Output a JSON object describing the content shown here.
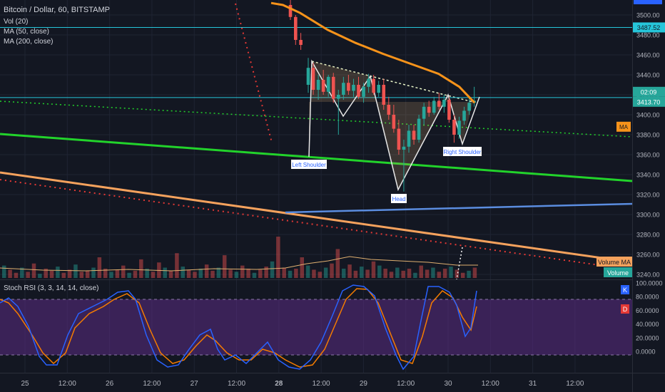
{
  "header": {
    "symbol": "Bitcoin / Dollar, 60, BITSTAMP",
    "indicators": [
      "Vol (20)",
      "MA (50, close)",
      "MA (200, close)"
    ]
  },
  "price_axis": {
    "ticks": [
      3500,
      3480,
      3460,
      3440,
      3420,
      3400,
      3380,
      3360,
      3340,
      3320,
      3300,
      3280,
      3260,
      3240
    ],
    "labels": [
      {
        "text": "3487.52",
        "value": 3487.52,
        "color": "#26c6da",
        "text_color": "#131722"
      },
      {
        "text": "02:09",
        "value": 3419,
        "color": "#26a69a",
        "text_color": "#ffffff"
      },
      {
        "text": "3413.70",
        "value": 3413.7,
        "color": "#26a69a",
        "text_color": "#ffffff"
      },
      {
        "text": "MA",
        "value": 3388,
        "color": "#f7931a",
        "text_color": "#131722"
      }
    ]
  },
  "time_axis": {
    "labels": [
      {
        "text": "25",
        "bold": false
      },
      {
        "text": "12:00",
        "bold": false
      },
      {
        "text": "26",
        "bold": false
      },
      {
        "text": "12:00",
        "bold": false
      },
      {
        "text": "27",
        "bold": false
      },
      {
        "text": "12:00",
        "bold": false
      },
      {
        "text": "28",
        "bold": true
      },
      {
        "text": "12:00",
        "bold": false
      },
      {
        "text": "29",
        "bold": false
      },
      {
        "text": "12:00",
        "bold": false
      },
      {
        "text": "30",
        "bold": false
      },
      {
        "text": "12:00",
        "bold": false
      },
      {
        "text": "31",
        "bold": false
      },
      {
        "text": "12:00",
        "bold": false
      }
    ]
  },
  "pattern": {
    "labels": [
      "Left Shoulder",
      "Head",
      "Right Shoulder"
    ]
  },
  "volume": {
    "labels": [
      "Volume MA",
      "Volume"
    ]
  },
  "stoch": {
    "title": "Stoch RSI (3, 3, 14, 14, close)",
    "ticks": [
      100,
      80,
      60,
      40,
      20,
      0
    ],
    "tick_labels": [
      "100.0000",
      "80.0000",
      "60.0000",
      "40.0000",
      "20.0000",
      "0.0000"
    ],
    "legend_k": "K",
    "legend_d": "D"
  },
  "colors": {
    "bg": "#131722",
    "grid": "#1f2433",
    "up": "#26a69a",
    "down": "#ef5350",
    "ma50": "#f7931a",
    "k": "#2962ff",
    "d": "#f57c00",
    "stoch_band": "#5b2c83"
  },
  "chart_data": {
    "type": "candlestick",
    "ylim": [
      3235,
      3515
    ],
    "horizontal_line": 3487.52,
    "current_price": 3413.7,
    "candles": [
      {
        "o": 3510,
        "h": 3515,
        "l": 3495,
        "c": 3498
      },
      {
        "o": 3498,
        "h": 3500,
        "l": 3470,
        "c": 3475
      },
      {
        "o": 3475,
        "h": 3482,
        "l": 3465,
        "c": 3470
      },
      {
        "o": 3430,
        "h": 3457,
        "l": 3422,
        "c": 3447
      },
      {
        "o": 3447,
        "h": 3452,
        "l": 3420,
        "c": 3425
      },
      {
        "o": 3425,
        "h": 3440,
        "l": 3415,
        "c": 3435
      },
      {
        "o": 3435,
        "h": 3445,
        "l": 3420,
        "c": 3423
      },
      {
        "o": 3423,
        "h": 3440,
        "l": 3418,
        "c": 3438
      },
      {
        "o": 3438,
        "h": 3442,
        "l": 3412,
        "c": 3416
      },
      {
        "o": 3416,
        "h": 3425,
        "l": 3380,
        "c": 3420
      },
      {
        "o": 3420,
        "h": 3438,
        "l": 3415,
        "c": 3432
      },
      {
        "o": 3432,
        "h": 3440,
        "l": 3420,
        "c": 3424
      },
      {
        "o": 3424,
        "h": 3436,
        "l": 3418,
        "c": 3430
      },
      {
        "o": 3430,
        "h": 3438,
        "l": 3416,
        "c": 3418
      },
      {
        "o": 3418,
        "h": 3432,
        "l": 3412,
        "c": 3428
      },
      {
        "o": 3428,
        "h": 3441,
        "l": 3422,
        "c": 3436
      },
      {
        "o": 3436,
        "h": 3440,
        "l": 3420,
        "c": 3422
      },
      {
        "o": 3422,
        "h": 3434,
        "l": 3418,
        "c": 3430
      },
      {
        "o": 3430,
        "h": 3436,
        "l": 3405,
        "c": 3410
      },
      {
        "o": 3410,
        "h": 3418,
        "l": 3395,
        "c": 3400
      },
      {
        "o": 3400,
        "h": 3410,
        "l": 3382,
        "c": 3386
      },
      {
        "o": 3386,
        "h": 3395,
        "l": 3360,
        "c": 3365
      },
      {
        "o": 3365,
        "h": 3375,
        "l": 3323,
        "c": 3368
      },
      {
        "o": 3368,
        "h": 3390,
        "l": 3362,
        "c": 3384
      },
      {
        "o": 3384,
        "h": 3390,
        "l": 3370,
        "c": 3375
      },
      {
        "o": 3375,
        "h": 3400,
        "l": 3372,
        "c": 3396
      },
      {
        "o": 3396,
        "h": 3412,
        "l": 3390,
        "c": 3408
      },
      {
        "o": 3408,
        "h": 3414,
        "l": 3398,
        "c": 3402
      },
      {
        "o": 3402,
        "h": 3418,
        "l": 3400,
        "c": 3414
      },
      {
        "o": 3414,
        "h": 3422,
        "l": 3405,
        "c": 3408
      },
      {
        "o": 3408,
        "h": 3420,
        "l": 3402,
        "c": 3415
      },
      {
        "o": 3415,
        "h": 3418,
        "l": 3392,
        "c": 3395
      },
      {
        "o": 3395,
        "h": 3400,
        "l": 3372,
        "c": 3380
      },
      {
        "o": 3380,
        "h": 3398,
        "l": 3376,
        "c": 3394
      },
      {
        "o": 3394,
        "h": 3408,
        "l": 3390,
        "c": 3404
      },
      {
        "o": 3404,
        "h": 3418,
        "l": 3400,
        "c": 3412
      },
      {
        "o": 3412,
        "h": 3428,
        "l": 3408,
        "c": 3414
      }
    ],
    "ma50": [
      [
        3378,
        3512
      ],
      [
        3395,
        3510
      ],
      [
        3420,
        3502
      ],
      [
        3460,
        3485
      ],
      [
        3500,
        3472
      ],
      [
        3540,
        3461
      ],
      [
        3580,
        3451
      ],
      [
        3620,
        3441
      ],
      [
        3650,
        3428
      ],
      [
        3665,
        3417
      ],
      [
        3672,
        3412
      ]
    ],
    "volume_bars": [
      12,
      8,
      5,
      10,
      6,
      14,
      4,
      9,
      7,
      11,
      5,
      8,
      13,
      6,
      7,
      10,
      20,
      9,
      6,
      8,
      12,
      5,
      7,
      18,
      9,
      6,
      15,
      10,
      7,
      24,
      11,
      8,
      6,
      9,
      13,
      7,
      10,
      22,
      8,
      6,
      12,
      9,
      5,
      8,
      11,
      16,
      40,
      10,
      7,
      9,
      20,
      12,
      8,
      6,
      10,
      14,
      28,
      9,
      13,
      7,
      11,
      8,
      16,
      12,
      9,
      6,
      10,
      7,
      9,
      5,
      12,
      8,
      10,
      6,
      9,
      11,
      8,
      5,
      7,
      10
    ]
  }
}
